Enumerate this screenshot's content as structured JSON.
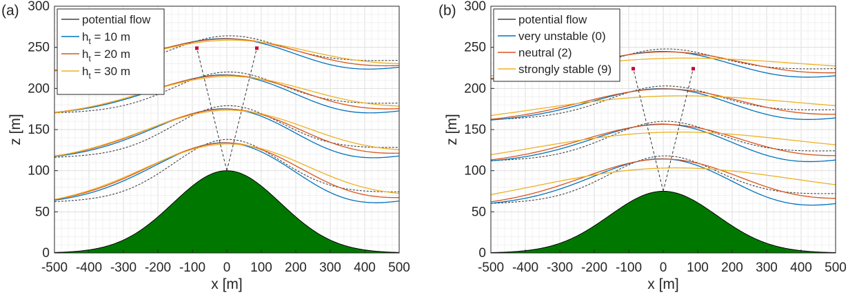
{
  "chart_data": [
    {
      "type": "line",
      "panel_label": "(a)",
      "xlabel": "x [m]",
      "ylabel": "z [m]",
      "xlim": [
        -500,
        500
      ],
      "ylim": [
        0,
        300
      ],
      "xticks": [
        "-500",
        "-400",
        "-300",
        "-200",
        "-100",
        "0",
        "100",
        "200",
        "300",
        "400",
        "500"
      ],
      "yticks": [
        "0",
        "50",
        "100",
        "150",
        "200",
        "250",
        "300"
      ],
      "grid": true,
      "legend_position": "top-left",
      "hill": {
        "height": 100,
        "halfwidth_factor": 270,
        "color": "#007800",
        "label": "hill"
      },
      "annotation": {
        "apex": [
          0,
          100
        ],
        "markers": [
          [
            -87,
            249
          ],
          [
            87,
            249
          ]
        ],
        "marker_color": "#cc0033"
      },
      "series": [
        {
          "name": "potential flow",
          "name_main": "potential flow",
          "name_sub": "",
          "name_tail": "",
          "color": "#404040",
          "dashed": true,
          "base_shift": 0,
          "stretch": 1.0,
          "amp_factor": 1.0,
          "deficit": 0,
          "deficit_x": 0,
          "deficit_w": 1
        },
        {
          "name": "h_t = 10 m",
          "name_main": "h",
          "name_sub": "t",
          "name_tail": " = 10 m",
          "color": "#0072bd",
          "dashed": false,
          "base_shift": -2,
          "stretch": 1.35,
          "amp_factor": 1.0,
          "deficit": 22,
          "deficit_x": 340,
          "deficit_w": 220
        },
        {
          "name": "h_t = 20 m",
          "name_main": "h",
          "name_sub": "t",
          "name_tail": " = 20 m",
          "color": "#d95319",
          "dashed": false,
          "base_shift": -3,
          "stretch": 1.45,
          "amp_factor": 1.0,
          "deficit": 14,
          "deficit_x": 360,
          "deficit_w": 230
        },
        {
          "name": "h_t = 30 m",
          "name_main": "h",
          "name_sub": "t",
          "name_tail": " = 30 m",
          "color": "#edb120",
          "dashed": false,
          "base_shift": -5,
          "stretch": 1.55,
          "amp_factor": 1.0,
          "deficit": 6,
          "deficit_x": 380,
          "deficit_w": 240
        }
      ],
      "streamlines": [
        {
          "z_left": 62,
          "amp": 70,
          "x_peak": 0
        },
        {
          "z_left": 116,
          "amp": 57,
          "x_peak": 0
        },
        {
          "z_left": 170,
          "amp": 44,
          "x_peak": 0
        },
        {
          "z_left": 222,
          "amp": 36,
          "x_peak": 0
        }
      ]
    },
    {
      "type": "line",
      "panel_label": "(b)",
      "xlabel": "x [m]",
      "ylabel": "z [m]",
      "xlim": [
        -500,
        500
      ],
      "ylim": [
        0,
        300
      ],
      "xticks": [
        "-500",
        "-400",
        "-300",
        "-200",
        "-100",
        "0",
        "100",
        "200",
        "300",
        "400",
        "500"
      ],
      "yticks": [
        "0",
        "50",
        "100",
        "150",
        "200",
        "250",
        "300"
      ],
      "grid": true,
      "legend_position": "top-left",
      "hill": {
        "height": 75,
        "halfwidth_factor": 270,
        "color": "#007800",
        "label": "hill"
      },
      "annotation": {
        "apex": [
          0,
          75
        ],
        "markers": [
          [
            -87,
            224
          ],
          [
            87,
            224
          ]
        ],
        "marker_color": "#cc0033"
      },
      "series": [
        {
          "name": "potential flow",
          "name_main": "potential flow",
          "name_sub": "",
          "name_tail": "",
          "color": "#404040",
          "dashed": true,
          "base_shift": 0,
          "stretch": 1.0,
          "amp_factor": 1.0,
          "deficit": 0,
          "deficit_x": 0,
          "deficit_w": 1
        },
        {
          "name": "very unstable (0)",
          "name_main": "very unstable (0)",
          "name_sub": "",
          "name_tail": "",
          "color": "#0072bd",
          "dashed": false,
          "base_shift": -2,
          "stretch": 1.3,
          "amp_factor": 1.0,
          "deficit": 18,
          "deficit_x": 360,
          "deficit_w": 230
        },
        {
          "name": "neutral (2)",
          "name_main": "neutral (2)",
          "name_sub": "",
          "name_tail": "",
          "color": "#d95319",
          "dashed": false,
          "base_shift": -3,
          "stretch": 1.5,
          "amp_factor": 1.0,
          "deficit": 10,
          "deficit_x": 380,
          "deficit_w": 240
        },
        {
          "name": "strongly stable (9)",
          "name_main": "strongly stable (9)",
          "name_sub": "",
          "name_tail": "",
          "color": "#edb120",
          "dashed": false,
          "base_shift": -7,
          "stretch": 2.4,
          "amp_factor": 0.85,
          "deficit": 0,
          "deficit_x": 0,
          "deficit_w": 1
        }
      ],
      "streamlines": [
        {
          "z_left": 60,
          "amp": 52,
          "x_peak": 0
        },
        {
          "z_left": 112,
          "amp": 42,
          "x_peak": 0
        },
        {
          "z_left": 162,
          "amp": 35,
          "x_peak": 0
        },
        {
          "z_left": 212,
          "amp": 30,
          "x_peak": 0
        }
      ]
    }
  ]
}
